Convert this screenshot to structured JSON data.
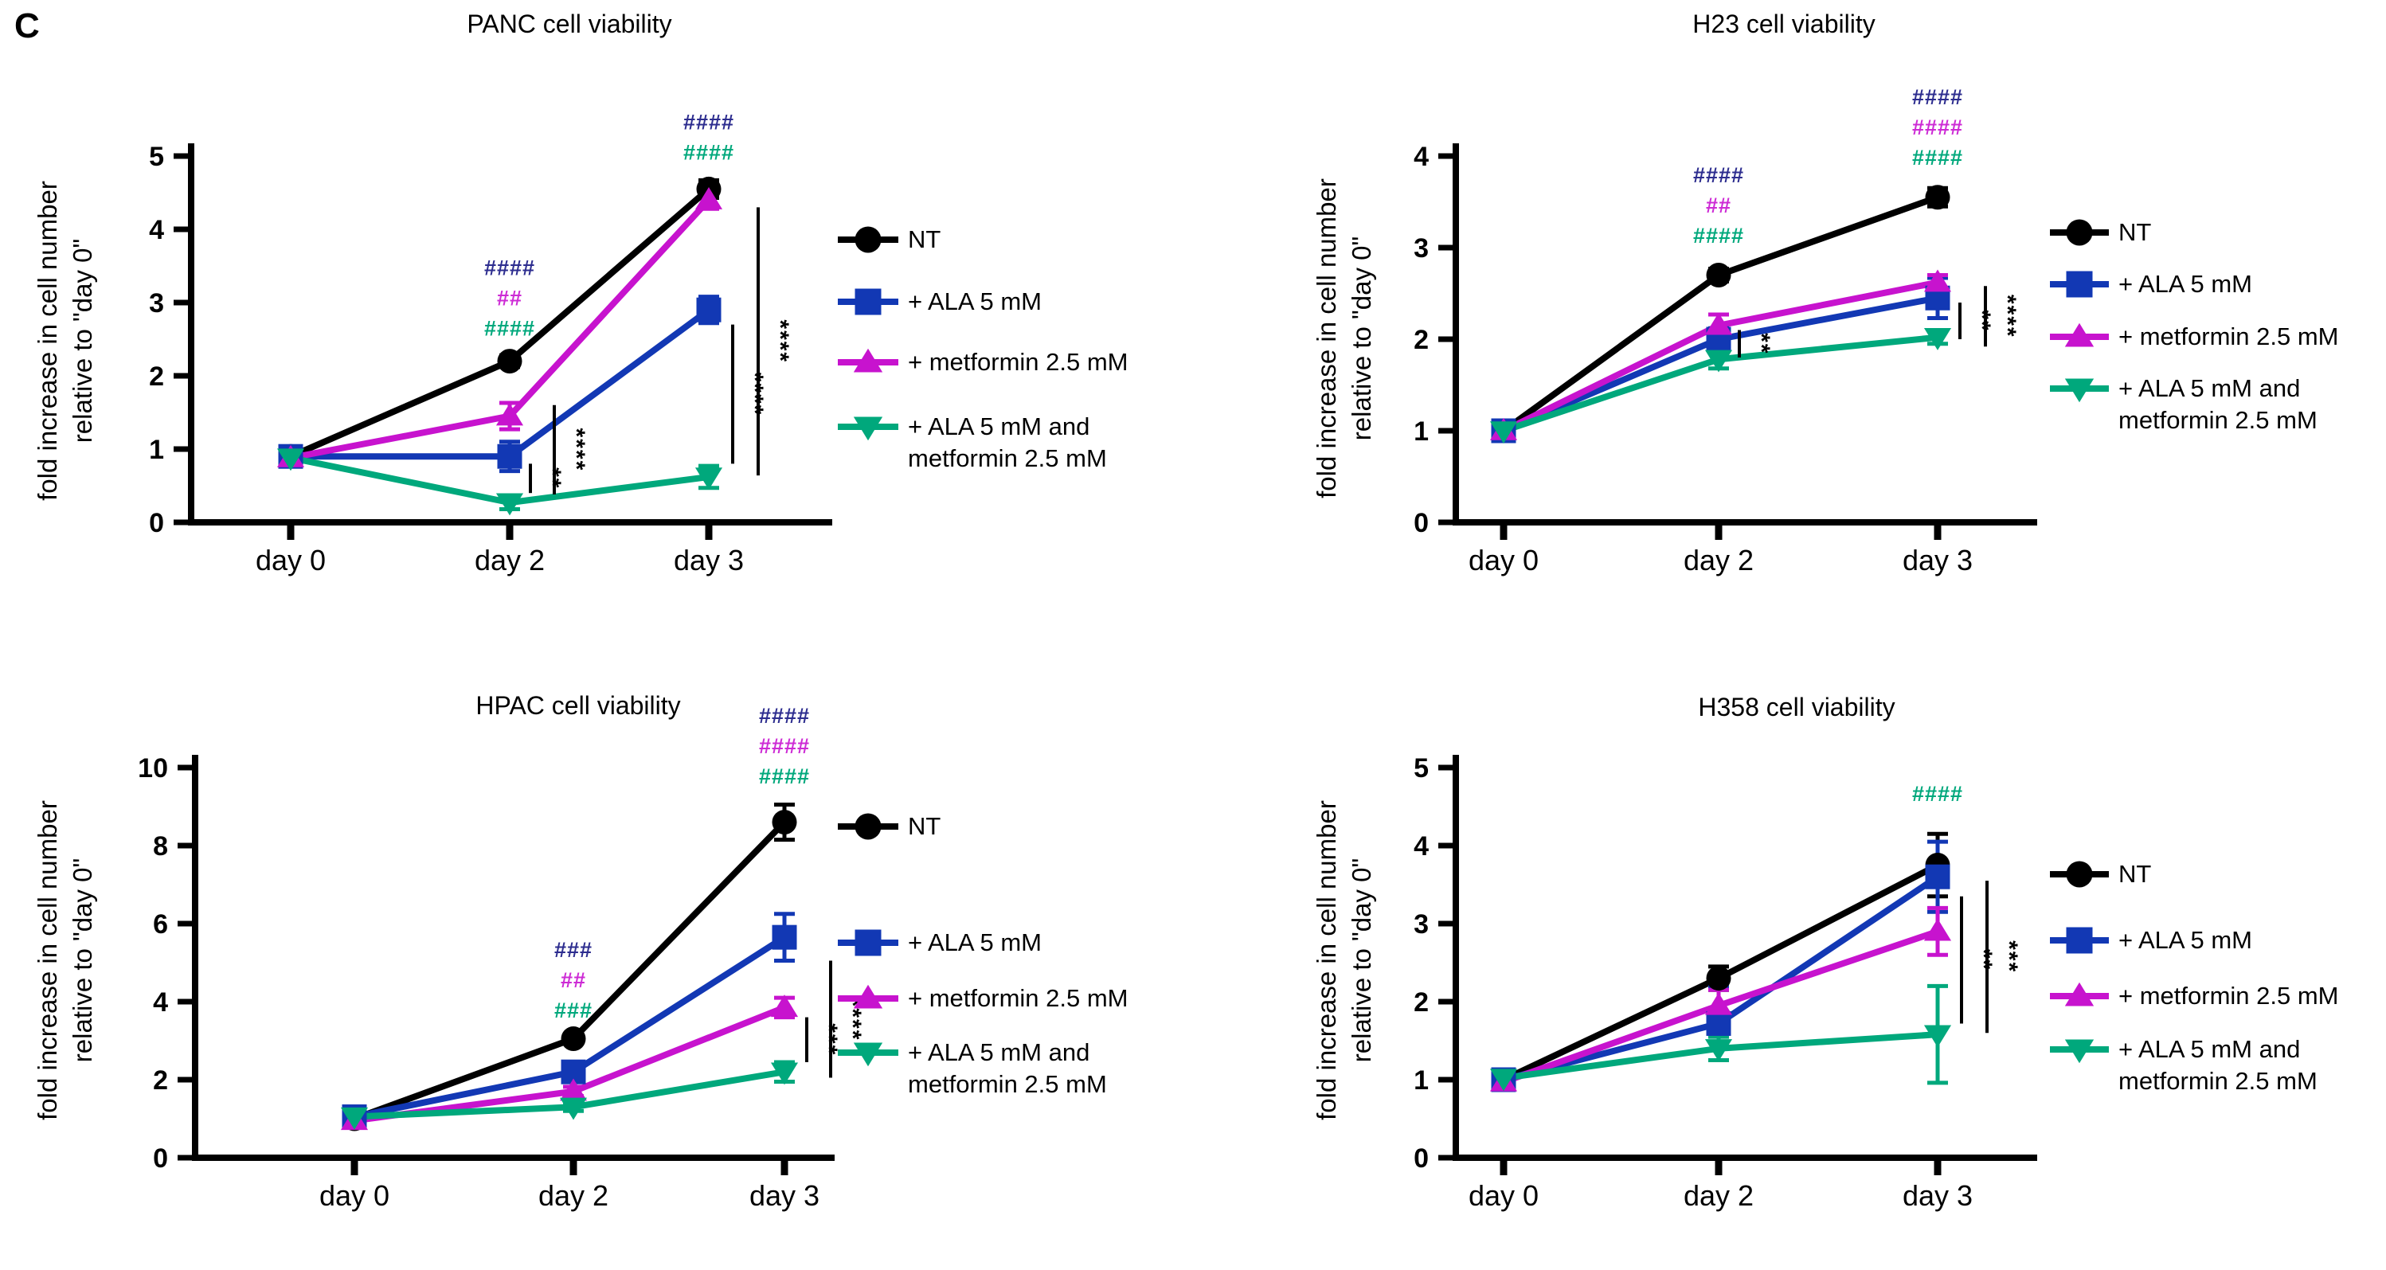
{
  "figure_label": "C",
  "colors": {
    "black": "#000000",
    "blue": "#1238b4",
    "magenta": "#c713ce",
    "green": "#00a87c",
    "navy_hash": "#2d2d8f",
    "magenta_hash": "#cd2bd5",
    "green_hash": "#00a87c"
  },
  "legend": {
    "items": [
      {
        "color_key": "black",
        "marker": "circle",
        "lines": [
          "NT"
        ]
      },
      {
        "color_key": "blue",
        "marker": "square",
        "lines": [
          "+ ALA 5 mM"
        ]
      },
      {
        "color_key": "magenta",
        "marker": "triangle-up",
        "lines": [
          "+ metformin 2.5 mM"
        ]
      },
      {
        "color_key": "green",
        "marker": "triangle-down",
        "lines": [
          "+ ALA 5 mM and",
          "metformin 2.5 mM"
        ]
      }
    ]
  },
  "chart_data": [
    {
      "type": "line",
      "title": "PANC cell viability",
      "ylabel_line1": "fold increase in cell number",
      "ylabel_line2": "relative to \"day 0\"",
      "categories": [
        "day 0",
        "day 2",
        "day 3"
      ],
      "ylim": [
        0,
        5
      ],
      "yticks": [
        0,
        1,
        2,
        3,
        4,
        5
      ],
      "grid": false,
      "legend_position": "right",
      "series": [
        {
          "name": "NT",
          "color_key": "black",
          "marker": "circle",
          "values": [
            0.9,
            2.2,
            4.55
          ],
          "errors": [
            0.04,
            0.08,
            0.12
          ]
        },
        {
          "name": "+ ALA 5 mM",
          "color_key": "blue",
          "marker": "square",
          "values": [
            0.9,
            0.9,
            2.9
          ],
          "errors": [
            0.04,
            0.2,
            0.18
          ]
        },
        {
          "name": "+ metformin 2.5 mM",
          "color_key": "magenta",
          "marker": "triangle-up",
          "values": [
            0.88,
            1.45,
            4.4
          ],
          "errors": [
            0.04,
            0.18,
            0.12
          ]
        },
        {
          "name": "+ ALA 5 mM and metformin 2.5 mM",
          "color_key": "green",
          "marker": "triangle-down",
          "values": [
            0.88,
            0.27,
            0.62
          ],
          "errors": [
            0.04,
            0.09,
            0.15
          ]
        }
      ],
      "hash_annotations": [
        {
          "x_index": 1,
          "base_value": 2.42,
          "rows": [
            {
              "text": "####",
              "color_key": "navy_hash"
            },
            {
              "text": "##",
              "color_key": "magenta_hash"
            },
            {
              "text": "####",
              "color_key": "green_hash"
            }
          ]
        },
        {
          "x_index": 2,
          "base_value": 4.82,
          "rows": [
            {
              "text": "####",
              "color_key": "navy_hash"
            },
            {
              "text": "####",
              "color_key": "green_hash"
            }
          ]
        }
      ],
      "sig_bars": [
        {
          "x_index": 1,
          "offset": 26,
          "top": 0.8,
          "bottom": 0.4,
          "label": "**"
        },
        {
          "x_index": 1,
          "offset": 56,
          "top": 1.6,
          "bottom": 0.38,
          "label": "****"
        },
        {
          "x_index": 2,
          "offset": 30,
          "top": 2.7,
          "bottom": 0.8,
          "label": "****"
        },
        {
          "x_index": 2,
          "offset": 62,
          "top": 4.3,
          "bottom": 0.64,
          "label": "****"
        }
      ]
    },
    {
      "type": "line",
      "title": "H23 cell viability",
      "ylabel_line1": "fold increase in cell number",
      "ylabel_line2": "relative to \"day 0\"",
      "categories": [
        "day 0",
        "day 2",
        "day 3"
      ],
      "ylim": [
        0,
        4
      ],
      "yticks": [
        0,
        1,
        2,
        3,
        4
      ],
      "grid": false,
      "legend_position": "right",
      "series": [
        {
          "name": "NT",
          "color_key": "black",
          "marker": "circle",
          "values": [
            1.0,
            2.7,
            3.55
          ],
          "errors": [
            0.02,
            0.07,
            0.1
          ]
        },
        {
          "name": "+ ALA 5 mM",
          "color_key": "blue",
          "marker": "square",
          "values": [
            1.0,
            2.0,
            2.45
          ],
          "errors": [
            0.02,
            0.12,
            0.22
          ]
        },
        {
          "name": "+ metformin 2.5 mM",
          "color_key": "magenta",
          "marker": "triangle-up",
          "values": [
            1.0,
            2.15,
            2.62
          ],
          "errors": [
            0.02,
            0.12,
            0.08
          ]
        },
        {
          "name": "+ ALA 5 mM and metformin 2.5 mM",
          "color_key": "green",
          "marker": "triangle-down",
          "values": [
            1.0,
            1.78,
            2.02
          ],
          "errors": [
            0.02,
            0.1,
            0.07
          ]
        }
      ],
      "hash_annotations": [
        {
          "x_index": 1,
          "base_value": 2.95,
          "rows": [
            {
              "text": "####",
              "color_key": "navy_hash"
            },
            {
              "text": "##",
              "color_key": "magenta_hash"
            },
            {
              "text": "####",
              "color_key": "green_hash"
            }
          ]
        },
        {
          "x_index": 2,
          "base_value": 3.8,
          "rows": [
            {
              "text": "####",
              "color_key": "navy_hash"
            },
            {
              "text": "####",
              "color_key": "magenta_hash"
            },
            {
              "text": "####",
              "color_key": "green_hash"
            }
          ]
        }
      ],
      "sig_bars": [
        {
          "x_index": 1,
          "offset": 26,
          "top": 2.1,
          "bottom": 1.8,
          "label": "**"
        },
        {
          "x_index": 2,
          "offset": 28,
          "top": 2.4,
          "bottom": 2.0,
          "label": "**"
        },
        {
          "x_index": 2,
          "offset": 60,
          "top": 2.58,
          "bottom": 1.92,
          "label": "****"
        }
      ]
    },
    {
      "type": "line",
      "title": "HPAC cell viability",
      "ylabel_line1": "fold increase in cell number",
      "ylabel_line2": "relative to \"day 0\"",
      "categories": [
        "day 0",
        "day 2",
        "day 3"
      ],
      "ylim": [
        0,
        10
      ],
      "yticks": [
        0,
        2,
        4,
        6,
        8,
        10
      ],
      "grid": false,
      "legend_position": "right",
      "series": [
        {
          "name": "NT",
          "color_key": "black",
          "marker": "circle",
          "values": [
            1.0,
            3.05,
            8.6
          ],
          "errors": [
            0.05,
            0.1,
            0.45
          ]
        },
        {
          "name": "+ ALA 5 mM",
          "color_key": "blue",
          "marker": "square",
          "values": [
            1.05,
            2.2,
            5.65
          ],
          "errors": [
            0.05,
            0.15,
            0.6
          ]
        },
        {
          "name": "+ metformin 2.5 mM",
          "color_key": "magenta",
          "marker": "triangle-up",
          "values": [
            0.95,
            1.7,
            3.85
          ],
          "errors": [
            0.05,
            0.12,
            0.25
          ]
        },
        {
          "name": "+ ALA 5 mM and metformin 2.5 mM",
          "color_key": "green",
          "marker": "triangle-down",
          "values": [
            1.05,
            1.3,
            2.2
          ],
          "errors": [
            0.05,
            0.1,
            0.25
          ]
        }
      ],
      "hash_annotations": [
        {
          "x_index": 1,
          "base_value": 3.35,
          "rows": [
            {
              "text": "###",
              "color_key": "navy_hash"
            },
            {
              "text": "##",
              "color_key": "magenta_hash"
            },
            {
              "text": "###",
              "color_key": "green_hash"
            }
          ]
        },
        {
          "x_index": 2,
          "base_value": 9.35,
          "rows": [
            {
              "text": "####",
              "color_key": "navy_hash"
            },
            {
              "text": "####",
              "color_key": "magenta_hash"
            },
            {
              "text": "####",
              "color_key": "green_hash"
            }
          ]
        }
      ],
      "sig_bars": [
        {
          "x_index": 2,
          "offset": 28,
          "top": 3.6,
          "bottom": 2.45,
          "label": "***"
        },
        {
          "x_index": 2,
          "offset": 58,
          "top": 5.05,
          "bottom": 2.05,
          "label": "****"
        }
      ]
    },
    {
      "type": "line",
      "title": "H358 cell viability",
      "ylabel_line1": "fold increase in cell number",
      "ylabel_line2": "relative to \"day 0\"",
      "categories": [
        "day 0",
        "day 2",
        "day 3"
      ],
      "ylim": [
        0,
        5
      ],
      "yticks": [
        0,
        1,
        2,
        3,
        4,
        5
      ],
      "grid": false,
      "legend_position": "right",
      "series": [
        {
          "name": "NT",
          "color_key": "black",
          "marker": "circle",
          "values": [
            1.0,
            2.3,
            3.75
          ],
          "errors": [
            0.04,
            0.15,
            0.4
          ]
        },
        {
          "name": "+ ALA 5 mM",
          "color_key": "blue",
          "marker": "square",
          "values": [
            1.0,
            1.72,
            3.6
          ],
          "errors": [
            0.04,
            0.47,
            0.45
          ]
        },
        {
          "name": "+ metformin 2.5 mM",
          "color_key": "magenta",
          "marker": "triangle-up",
          "values": [
            0.97,
            1.95,
            2.9
          ],
          "errors": [
            0.04,
            0.2,
            0.3
          ]
        },
        {
          "name": "+ ALA 5 mM and metformin 2.5 mM",
          "color_key": "green",
          "marker": "triangle-down",
          "values": [
            1.02,
            1.4,
            1.58
          ],
          "errors": [
            0.04,
            0.15,
            0.62
          ]
        }
      ],
      "hash_annotations": [
        {
          "x_index": 2,
          "base_value": 4.45,
          "rows": [
            {
              "text": "####",
              "color_key": "green_hash"
            }
          ]
        }
      ],
      "sig_bars": [
        {
          "x_index": 2,
          "offset": 30,
          "top": 3.35,
          "bottom": 1.72,
          "label": "**"
        },
        {
          "x_index": 2,
          "offset": 62,
          "top": 3.55,
          "bottom": 1.6,
          "label": "***"
        }
      ]
    }
  ]
}
